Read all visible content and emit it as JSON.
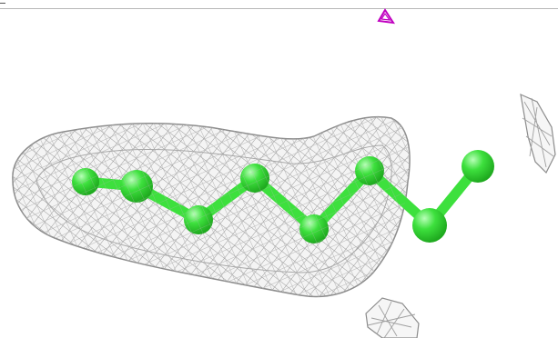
{
  "scene": {
    "background": "#ffffff",
    "mesh_color": "#9a9a9a",
    "ligand_color": "#3de03d",
    "ligand_dark": "#1faa1f",
    "ligand_highlight": "#b8ffb8",
    "marker_color": "#c000c0"
  },
  "icons": {
    "marker": "magenta-triangle-marker"
  }
}
